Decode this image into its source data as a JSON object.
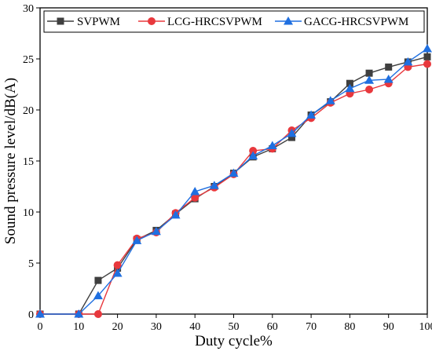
{
  "chart_data": {
    "type": "line",
    "title": "",
    "xlabel": "Duty cycle%",
    "ylabel": "Sound pressure level/dB(A)",
    "xlim": [
      0,
      100
    ],
    "ylim": [
      0,
      30
    ],
    "x_ticks": [
      0,
      10,
      20,
      30,
      40,
      50,
      60,
      70,
      80,
      90,
      100
    ],
    "y_ticks": [
      0,
      5,
      10,
      15,
      20,
      25,
      30
    ],
    "x": [
      0,
      10,
      15,
      20,
      25,
      30,
      35,
      40,
      45,
      50,
      55,
      60,
      65,
      70,
      75,
      80,
      85,
      90,
      95,
      100
    ],
    "grid": false,
    "legend_position": "top",
    "series": [
      {
        "name": "SVPWM",
        "color": "#3f3f3f",
        "marker": "square",
        "values": [
          0,
          0,
          3.3,
          4.5,
          7.3,
          8.2,
          9.8,
          11.3,
          12.5,
          13.8,
          15.4,
          16.2,
          17.3,
          19.5,
          20.8,
          22.6,
          23.6,
          24.2,
          24.7,
          25.2
        ]
      },
      {
        "name": "LCG-HRCSVPWM",
        "color": "#e8383d",
        "marker": "circle",
        "values": [
          0,
          0,
          0,
          4.8,
          7.4,
          8.0,
          9.9,
          11.4,
          12.4,
          13.7,
          16.0,
          16.2,
          18.0,
          19.2,
          20.7,
          21.6,
          22.0,
          22.6,
          24.2,
          24.5
        ]
      },
      {
        "name": "GACG-HRCSVPWM",
        "color": "#1f6fe0",
        "marker": "triangle",
        "values": [
          0,
          0,
          1.8,
          4.0,
          7.2,
          8.1,
          9.7,
          12.0,
          12.6,
          13.8,
          15.5,
          16.5,
          17.7,
          19.5,
          20.9,
          22.1,
          22.9,
          23.0,
          24.7,
          26.0
        ]
      }
    ]
  }
}
